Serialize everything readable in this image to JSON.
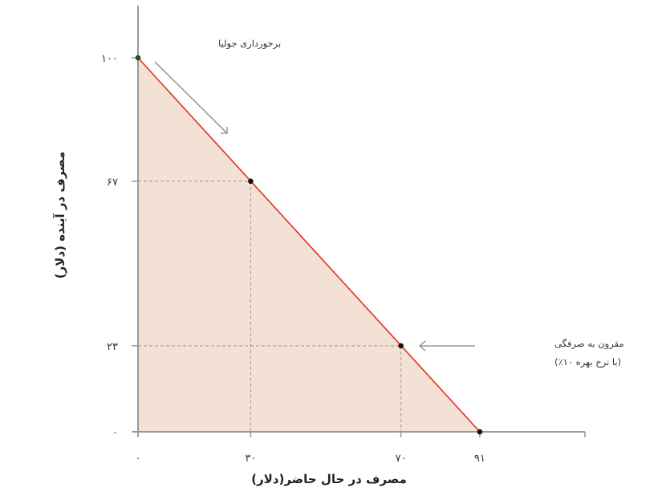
{
  "chart_data": {
    "type": "line",
    "title": "",
    "xlabel": "مصرف در حال حاضر(دلار)",
    "ylabel": "مصرف در آینده (دلار)",
    "xlim": [
      0,
      119
    ],
    "ylim": [
      0,
      114
    ],
    "grid": false,
    "x_ticks": [
      {
        "value": 0,
        "label": "۰"
      },
      {
        "value": 30,
        "label": "۳۰"
      },
      {
        "value": 70,
        "label": "۷۰"
      },
      {
        "value": 91,
        "label": "۹۱"
      }
    ],
    "y_ticks": [
      {
        "value": 0,
        "label": "۰"
      },
      {
        "value": 23,
        "label": "۲۳"
      },
      {
        "value": 67,
        "label": "۶۷"
      },
      {
        "value": 100,
        "label": "۱۰۰"
      }
    ],
    "series": [
      {
        "points": [
          [
            0,
            100
          ],
          [
            91,
            0
          ]
        ],
        "color": "#e0321e",
        "fill": "#f3e1d5"
      }
    ],
    "points": [
      [
        0,
        100
      ],
      [
        30,
        67
      ],
      [
        70,
        23
      ],
      [
        91,
        0
      ]
    ],
    "annotations": [
      {
        "text": "برخورداری جولیا",
        "at": [
          0,
          100
        ]
      },
      {
        "line1": "مقرون به صرفگی",
        "line2": "(با نرخ بهره ۱۰٪)",
        "at": [
          70,
          23
        ]
      }
    ]
  }
}
